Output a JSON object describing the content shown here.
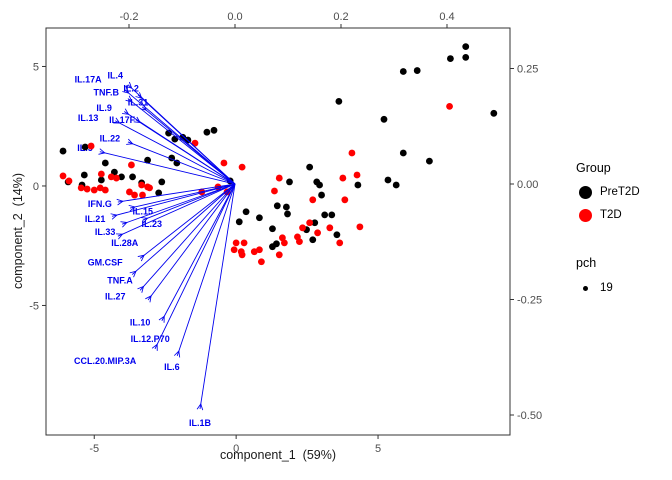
{
  "chart_data": {
    "type": "scatter",
    "title": "",
    "xlabel": "component_1  (59%)",
    "ylabel": "component_2  (14%)",
    "grid": "off",
    "legend_position": "right",
    "axes": {
      "bottom": {
        "lim": [
          -6.7,
          9.65
        ],
        "values": [
          -5,
          0,
          5
        ],
        "labels": [
          "-5",
          "0",
          "5"
        ]
      },
      "left": {
        "lim": [
          -10.42,
          6.61
        ],
        "values": [
          5,
          0,
          -5
        ],
        "labels": [
          "5",
          "0",
          "-5"
        ]
      },
      "top": {
        "lim": [
          -0.3566,
          0.5189
        ],
        "values": [
          -0.2,
          0.0,
          0.2,
          0.4
        ],
        "labels": [
          "-0.2",
          "0.0",
          "0.2",
          "0.4"
        ]
      },
      "right": {
        "lim": [
          -0.5433,
          0.3377
        ],
        "values": [
          0.25,
          0.0,
          -0.25,
          -0.5
        ],
        "labels": [
          "0.25",
          "0.00",
          "-0.25",
          "-0.50"
        ]
      }
    },
    "series": [
      {
        "name": "PreT2D",
        "color": "#000000",
        "points": [
          [
            -6.1,
            1.46
          ],
          [
            -5.32,
            1.63
          ],
          [
            -4.61,
            0.96
          ],
          [
            -5.35,
            0.46
          ],
          [
            -5.92,
            0.17
          ],
          [
            -5.43,
            0.04
          ],
          [
            -4.75,
            0.25
          ],
          [
            -4.29,
            0.58
          ],
          [
            -4.04,
            0.38
          ],
          [
            -3.65,
            0.38
          ],
          [
            -3.33,
            0.13
          ],
          [
            -2.73,
            -0.29
          ],
          [
            -2.62,
            0.17
          ],
          [
            -2.38,
            2.21
          ],
          [
            -2.16,
            1.96
          ],
          [
            -1.88,
            2.04
          ],
          [
            -1.7,
            1.92
          ],
          [
            -2.27,
            1.17
          ],
          [
            -2.09,
            0.96
          ],
          [
            -3.12,
            1.08
          ],
          [
            -1.03,
            2.25
          ],
          [
            -0.78,
            2.33
          ],
          [
            -0.21,
            0.21
          ],
          [
            1.88,
            0.17
          ],
          [
            2.59,
            0.79
          ],
          [
            2.84,
            0.17
          ],
          [
            2.94,
            0.04
          ],
          [
            0.35,
            -1.08
          ],
          [
            0.82,
            -1.33
          ],
          [
            0.11,
            -1.5
          ],
          [
            1.45,
            -0.83
          ],
          [
            1.77,
            -0.88
          ],
          [
            1.81,
            -1.17
          ],
          [
            1.28,
            -1.79
          ],
          [
            3.01,
            -0.38
          ],
          [
            2.77,
            -1.54
          ],
          [
            2.48,
            -1.83
          ],
          [
            2.7,
            -2.25
          ],
          [
            3.12,
            -1.21
          ],
          [
            3.37,
            -1.21
          ],
          [
            3.55,
            -2.04
          ],
          [
            1.28,
            -2.54
          ],
          [
            1.42,
            -2.42
          ],
          [
            3.62,
            3.54
          ],
          [
            5.21,
            2.79
          ],
          [
            5.89,
            4.79
          ],
          [
            6.38,
            4.83
          ],
          [
            7.55,
            5.33
          ],
          [
            8.09,
            5.38
          ],
          [
            8.09,
            5.83
          ],
          [
            9.08,
            3.04
          ],
          [
            5.89,
            1.38
          ],
          [
            6.81,
            1.04
          ],
          [
            5.35,
            0.25
          ],
          [
            5.64,
            0.04
          ],
          [
            4.29,
            0.04
          ]
        ]
      },
      {
        "name": "T2D",
        "color": "#FF0000",
        "points": [
          [
            -6.1,
            0.42
          ],
          [
            -5.89,
            0.21
          ],
          [
            -5.46,
            -0.08
          ],
          [
            -5.25,
            -0.13
          ],
          [
            -5.0,
            -0.17
          ],
          [
            -4.79,
            -0.08
          ],
          [
            -4.61,
            -0.17
          ],
          [
            -4.4,
            0.38
          ],
          [
            -4.22,
            0.33
          ],
          [
            -4.75,
            0.5
          ],
          [
            -3.69,
            0.88
          ],
          [
            -3.33,
            0.04
          ],
          [
            -3.12,
            -0.04
          ],
          [
            -3.76,
            -0.25
          ],
          [
            -3.58,
            -0.38
          ],
          [
            -3.3,
            -0.38
          ],
          [
            -3.05,
            -0.08
          ],
          [
            -5.11,
            1.67
          ],
          [
            -1.45,
            1.79
          ],
          [
            -1.21,
            -0.25
          ],
          [
            -0.64,
            -0.04
          ],
          [
            -0.32,
            -0.25
          ],
          [
            -0.43,
            0.96
          ],
          [
            0.21,
            0.79
          ],
          [
            1.35,
            -0.21
          ],
          [
            2.7,
            -0.58
          ],
          [
            3.83,
            -0.58
          ],
          [
            2.34,
            -1.75
          ],
          [
            2.59,
            -1.54
          ],
          [
            2.87,
            -1.96
          ],
          [
            3.3,
            -1.75
          ],
          [
            3.65,
            -2.38
          ],
          [
            4.36,
            -1.71
          ],
          [
            2.16,
            -2.13
          ],
          [
            2.23,
            -2.33
          ],
          [
            1.63,
            -2.17
          ],
          [
            1.7,
            -2.38
          ],
          [
            0.0,
            -2.38
          ],
          [
            0.28,
            -2.38
          ],
          [
            -0.07,
            -2.67
          ],
          [
            0.18,
            -2.75
          ],
          [
            0.21,
            -2.88
          ],
          [
            0.64,
            -2.75
          ],
          [
            0.82,
            -2.67
          ],
          [
            0.89,
            -3.17
          ],
          [
            1.52,
            -2.88
          ],
          [
            1.52,
            0.33
          ],
          [
            3.76,
            0.33
          ],
          [
            4.26,
            0.46
          ],
          [
            4.08,
            1.38
          ],
          [
            7.52,
            3.33
          ]
        ]
      }
    ],
    "loadings": {
      "color": "#0000EE",
      "origin": [
        0,
        0
      ],
      "arrows": [
        {
          "label": "IL.17A",
          "tip": [
            -0.208,
            0.204
          ],
          "label_pos": [
            -0.277,
            0.226
          ]
        },
        {
          "label": "IL.4",
          "tip": [
            -0.202,
            0.215
          ],
          "label_pos": [
            -0.226,
            0.235
          ]
        },
        {
          "label": "TNF.B",
          "tip": [
            -0.202,
            0.185
          ],
          "label_pos": [
            -0.243,
            0.198
          ]
        },
        {
          "label": "IL.2",
          "tip": [
            -0.183,
            0.193
          ],
          "label_pos": [
            -0.196,
            0.207
          ]
        },
        {
          "label": "IL.31",
          "tip": [
            -0.175,
            0.167
          ],
          "label_pos": [
            -0.183,
            0.176
          ]
        },
        {
          "label": "IL.9",
          "tip": [
            -0.209,
            0.157
          ],
          "label_pos": [
            -0.247,
            0.165
          ]
        },
        {
          "label": "IL.17F",
          "tip": [
            -0.187,
            0.139
          ],
          "label_pos": [
            -0.213,
            0.139
          ]
        },
        {
          "label": "IL.13",
          "tip": [
            -0.226,
            0.137
          ],
          "label_pos": [
            -0.277,
            0.143
          ]
        },
        {
          "label": "IL.22",
          "tip": [
            -0.202,
            0.091
          ],
          "label_pos": [
            -0.236,
            0.098
          ]
        },
        {
          "label": "IL.5",
          "tip": [
            -0.255,
            0.07
          ],
          "label_pos": [
            -0.283,
            0.078
          ]
        },
        {
          "label": "IFN.G",
          "tip": [
            -0.221,
            -0.039
          ],
          "label_pos": [
            -0.255,
            -0.043
          ]
        },
        {
          "label": "IL.15",
          "tip": [
            -0.198,
            -0.052
          ],
          "label_pos": [
            -0.174,
            -0.059
          ]
        },
        {
          "label": "IL.21",
          "tip": [
            -0.232,
            -0.07
          ],
          "label_pos": [
            -0.264,
            -0.076
          ]
        },
        {
          "label": "IL.33",
          "tip": [
            -0.213,
            -0.087
          ],
          "label_pos": [
            -0.245,
            -0.104
          ]
        },
        {
          "label": "IL.23",
          "tip": [
            -0.174,
            -0.078
          ],
          "label_pos": [
            -0.157,
            -0.087
          ]
        },
        {
          "label": "IL.28A",
          "tip": [
            -0.221,
            -0.113
          ],
          "label_pos": [
            -0.208,
            -0.128
          ]
        },
        {
          "label": "GM.CSF",
          "tip": [
            -0.179,
            -0.161
          ],
          "label_pos": [
            -0.245,
            -0.17
          ]
        },
        {
          "label": "TNF.A",
          "tip": [
            -0.194,
            -0.196
          ],
          "label_pos": [
            -0.217,
            -0.209
          ]
        },
        {
          "label": "IL.27",
          "tip": [
            -0.179,
            -0.23
          ],
          "label_pos": [
            -0.226,
            -0.243
          ]
        },
        {
          "label": "IL.10",
          "tip": [
            -0.164,
            -0.251
          ],
          "label_pos": [
            -0.179,
            -0.3
          ]
        },
        {
          "label": "IL.12.P70",
          "tip": [
            -0.138,
            -0.296
          ],
          "label_pos": [
            -0.16,
            -0.335
          ]
        },
        {
          "label": "CCL.20.MIP.3A",
          "tip": [
            -0.151,
            -0.357
          ],
          "label_pos": [
            -0.245,
            -0.383
          ]
        },
        {
          "label": "IL.6",
          "tip": [
            -0.109,
            -0.372
          ],
          "label_pos": [
            -0.119,
            -0.396
          ]
        },
        {
          "label": "IL.1B",
          "tip": [
            -0.066,
            -0.487
          ],
          "label_pos": [
            -0.066,
            -0.517
          ]
        }
      ]
    }
  },
  "legend": {
    "group_title": "Group",
    "items": [
      {
        "label": "PreT2D",
        "color": "#000000"
      },
      {
        "label": "T2D",
        "color": "#FF0000"
      }
    ],
    "pch_title": "pch",
    "pch_value": "19",
    "pch_color": "#000000"
  },
  "style": {
    "tick_label_color": "#4d4d4d",
    "panel_border_color": "#333333",
    "point_radius": 3.4
  }
}
